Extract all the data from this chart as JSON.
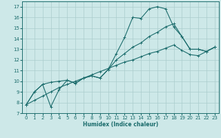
{
  "xlabel": "Humidex (Indice chaleur)",
  "bg_color": "#cde8e8",
  "grid_color": "#aacccc",
  "line_color": "#1a6b6b",
  "xlim": [
    -0.5,
    23.5
  ],
  "ylim": [
    7,
    17.5
  ],
  "xticks": [
    0,
    1,
    2,
    3,
    4,
    5,
    6,
    7,
    8,
    9,
    10,
    11,
    12,
    13,
    14,
    15,
    16,
    17,
    18,
    19,
    20,
    21,
    22,
    23
  ],
  "yticks": [
    7,
    8,
    9,
    10,
    11,
    12,
    13,
    14,
    15,
    16,
    17
  ],
  "line1_x": [
    0,
    1,
    2,
    3,
    4,
    5,
    6,
    7,
    8,
    9,
    10,
    11,
    12,
    13,
    14,
    15,
    16,
    17,
    18,
    19,
    20,
    21,
    22,
    23
  ],
  "line1_y": [
    7.8,
    9.0,
    9.7,
    7.6,
    9.2,
    10.1,
    9.8,
    10.3,
    10.5,
    10.3,
    11.1,
    12.6,
    14.1,
    16.0,
    15.9,
    16.8,
    17.0,
    16.8,
    15.1,
    14.2,
    13.0,
    13.0,
    12.8,
    13.2
  ],
  "line2_x": [
    0,
    1,
    2,
    3,
    4,
    5,
    6,
    7,
    8,
    9,
    10,
    11,
    12,
    13,
    14,
    15,
    16,
    17,
    18,
    19,
    20,
    21,
    22,
    23
  ],
  "line2_y": [
    7.8,
    9.0,
    9.7,
    9.9,
    10.0,
    10.1,
    9.8,
    10.3,
    10.5,
    10.3,
    11.1,
    12.0,
    12.6,
    13.2,
    13.6,
    14.2,
    14.6,
    15.1,
    15.4,
    14.2,
    13.0,
    13.0,
    12.8,
    13.2
  ],
  "line3_x": [
    0,
    1,
    2,
    3,
    4,
    5,
    6,
    7,
    8,
    9,
    10,
    11,
    12,
    13,
    14,
    15,
    16,
    17,
    18,
    19,
    20,
    21,
    22,
    23
  ],
  "line3_y": [
    7.8,
    8.2,
    8.6,
    9.0,
    9.4,
    9.7,
    10.0,
    10.3,
    10.6,
    10.9,
    11.2,
    11.5,
    11.8,
    12.0,
    12.3,
    12.6,
    12.8,
    13.1,
    13.4,
    12.9,
    12.5,
    12.4,
    12.8,
    13.2
  ]
}
